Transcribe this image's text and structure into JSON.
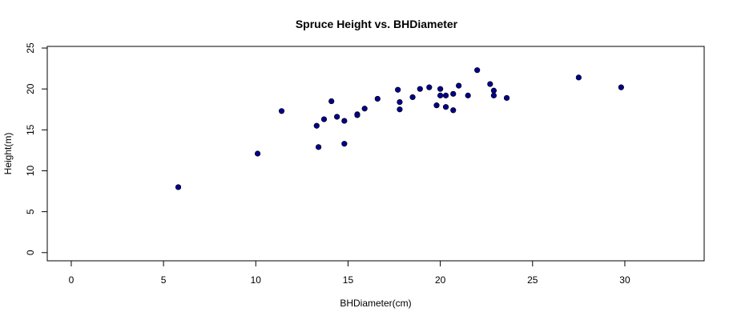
{
  "chart_data": {
    "type": "scatter",
    "title": "Spruce Height vs. BHDiameter",
    "xlabel": "BHDiameter(cm)",
    "ylabel": "Height(m)",
    "xlim": [
      -1.3,
      34.3
    ],
    "ylim": [
      -1,
      25.2
    ],
    "xticks": [
      0,
      5,
      10,
      15,
      20,
      25,
      30
    ],
    "yticks": [
      0,
      5,
      10,
      15,
      20,
      25
    ],
    "xtick_labels": [
      "0",
      "5",
      "10",
      "15",
      "20",
      "25",
      "30"
    ],
    "ytick_labels": [
      "0",
      "5",
      "10",
      "15",
      "20",
      "25"
    ],
    "grid": false,
    "point_color": "#00008B",
    "x": [
      5.8,
      10.1,
      11.4,
      13.3,
      13.4,
      13.7,
      14.1,
      14.4,
      14.8,
      14.8,
      15.5,
      15.5,
      15.9,
      16.6,
      17.7,
      17.8,
      17.8,
      18.5,
      18.9,
      19.4,
      19.8,
      20.0,
      20.0,
      20.3,
      20.3,
      20.7,
      20.7,
      21.0,
      21.5,
      22.0,
      22.7,
      22.9,
      22.9,
      23.6,
      27.5,
      29.8
    ],
    "y": [
      8.0,
      12.1,
      17.3,
      15.5,
      12.9,
      16.3,
      18.5,
      16.6,
      16.1,
      13.3,
      16.9,
      16.8,
      17.6,
      18.8,
      19.9,
      18.4,
      17.5,
      19.0,
      20.0,
      20.2,
      18.0,
      20.0,
      19.2,
      19.2,
      17.8,
      19.4,
      17.4,
      20.4,
      19.2,
      22.3,
      20.6,
      19.8,
      19.2,
      18.9,
      21.4,
      20.2
    ]
  }
}
